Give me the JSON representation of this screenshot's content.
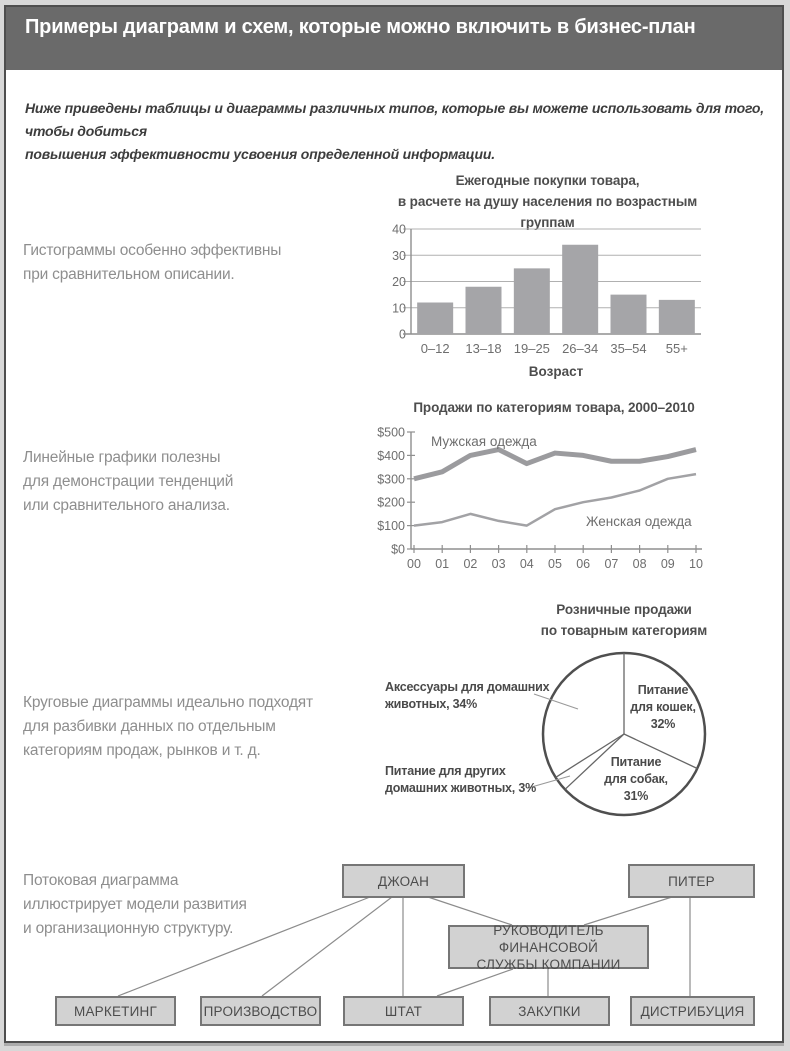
{
  "page": {
    "header": {
      "line1": "Примеры диаграмм и схем,",
      "line2": "которые можно включить в бизнес-план"
    },
    "intro": {
      "line1": "Ниже приведены таблицы и диаграммы различных типов, которые вы можете использовать для того, чтобы добиться",
      "line2": "повышения эффективности усвоения определенной информации."
    }
  },
  "sections": {
    "bar": {
      "description": [
        "Гистограммы особенно эффективны",
        "при сравнительном описании."
      ]
    },
    "line": {
      "description": [
        "Линейные графики полезны",
        "для демонстрации тенденций",
        "или сравнительного анализа."
      ]
    },
    "pie": {
      "description": [
        "Круговые диаграммы идеально подходят",
        "для разбивки данных по отдельным",
        "категориям продаж, рынков и т. д."
      ]
    },
    "flow": {
      "description": [
        "Потоковая диаграмма",
        "иллюстрирует модели развития",
        "и организационную структуру."
      ]
    }
  },
  "chart_data": [
    {
      "type": "bar",
      "title_lines": [
        "Ежегодные покупки товара,",
        "в расчете на душу населения по возрастным группам"
      ],
      "categories": [
        "0–12",
        "13–18",
        "19–25",
        "26–34",
        "35–54",
        "55+"
      ],
      "values": [
        12,
        18,
        25,
        34,
        15,
        13
      ],
      "xlabel": "Возраст",
      "yticks": [
        0,
        10,
        20,
        30,
        40
      ],
      "ytick_labels": [
        "0",
        "10",
        "20",
        "30",
        "40"
      ],
      "ylim": [
        0,
        40
      ],
      "grid": "horizontal"
    },
    {
      "type": "line",
      "title": "Продажи по категориям товара, 2000–2010",
      "x_labels": [
        "00",
        "01",
        "02",
        "03",
        "04",
        "05",
        "06",
        "07",
        "08",
        "09",
        "10"
      ],
      "series": [
        {
          "name": "Мужская одежда",
          "values": [
            300,
            330,
            400,
            425,
            365,
            410,
            400,
            375,
            375,
            395,
            425
          ]
        },
        {
          "name": "Женская одежда",
          "values": [
            100,
            115,
            150,
            120,
            100,
            170,
            200,
            220,
            250,
            300,
            320
          ]
        }
      ],
      "yticks": [
        0,
        100,
        200,
        300,
        400,
        500
      ],
      "ytick_labels": [
        "$0",
        "$100",
        "$200",
        "$300",
        "$400",
        "$500"
      ],
      "ylim": [
        0,
        500
      ],
      "grid": "off",
      "legend": "inline-labels"
    },
    {
      "type": "pie",
      "title_lines": [
        "Розничные продажи",
        "по товарным категориям"
      ],
      "slices": [
        {
          "label": "Питание для кошек",
          "pct": 32
        },
        {
          "label": "Питание для собак",
          "pct": 31
        },
        {
          "label": "Питание для других домашних животных",
          "pct": 3
        },
        {
          "label": "Аксессуары для домашних животных",
          "pct": 34
        }
      ],
      "start_angle_deg": 0,
      "inner_labels": {
        "cats": {
          "lines": [
            "Питание",
            "для кошек,",
            "32%"
          ]
        },
        "dogs": {
          "lines": [
            "Питание",
            "для собак,",
            "31%"
          ]
        }
      },
      "outer_labels": {
        "accessories": {
          "lines": [
            "Аксессуары для домашних",
            "животных, 34%"
          ]
        },
        "other": {
          "lines": [
            "Питание для других",
            "домашних животных, 3%"
          ]
        }
      }
    },
    {
      "type": "orgchart",
      "nodes": {
        "joan": [
          "ДЖОАН"
        ],
        "piter": [
          "ПИТЕР"
        ],
        "fin": [
          "РУКОВОДИТЕЛЬ ФИНАНСОВОЙ",
          "СЛУЖБЫ КОМПАНИИ"
        ],
        "marketing": [
          "МАРКЕТИНГ"
        ],
        "production": [
          "ПРОИЗВОДСТВО"
        ],
        "staff": [
          "ШТАТ"
        ],
        "purchasing": [
          "ЗАКУПКИ"
        ],
        "distribution": [
          "ДИСТРИБУЦИЯ"
        ]
      },
      "edges": [
        [
          "joan",
          "marketing"
        ],
        [
          "joan",
          "production"
        ],
        [
          "joan",
          "staff"
        ],
        [
          "joan",
          "fin"
        ],
        [
          "piter",
          "fin"
        ],
        [
          "piter",
          "distribution"
        ],
        [
          "fin",
          "staff"
        ],
        [
          "fin",
          "purchasing"
        ]
      ]
    }
  ],
  "colors": {
    "header_bg": "#6a6a6a",
    "header_text": "#ffffff",
    "bar_fill": "#a5a5a8",
    "grid_line": "#b0b0b0",
    "axis_line": "#8f8f8f",
    "axis_text": "#6e6e6e",
    "series_men": "#9b9b9e",
    "series_women": "#a2a2a5",
    "pie_stroke": "#4f4f4f",
    "pie_divider": "#666666",
    "leader_line": "#999999",
    "box_fill": "#d2d2d2",
    "box_border": "#767676",
    "connector": "#8c8c8c",
    "title_text": "#4d4d4d",
    "desc_text": "#8e8e8e"
  }
}
